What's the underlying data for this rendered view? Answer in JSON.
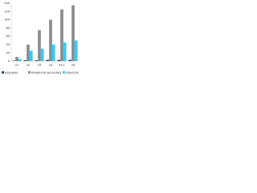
{
  "chart_data": {
    "type": "bar",
    "categories": [
      "v1",
      "v2",
      "v3",
      "v4",
      "v4.1",
      "v5"
    ],
    "series": [
      {
        "name": "Keyvalue",
        "color": "#1f4e79",
        "values": [
          1,
          2,
          2,
          3,
          3,
          3
        ]
      },
      {
        "name": "Relational secondary",
        "color": "#8c8c8c",
        "values": [
          10,
          40,
          75,
          100,
          125,
          135
        ]
      },
      {
        "name": "Structure",
        "color": "#33ccff",
        "values": [
          5,
          25,
          30,
          40,
          45,
          50
        ]
      }
    ],
    "ylim": [
      0,
      140
    ],
    "yticks": [
      0,
      20,
      40,
      60,
      80,
      100,
      120,
      140
    ],
    "grid": false
  }
}
